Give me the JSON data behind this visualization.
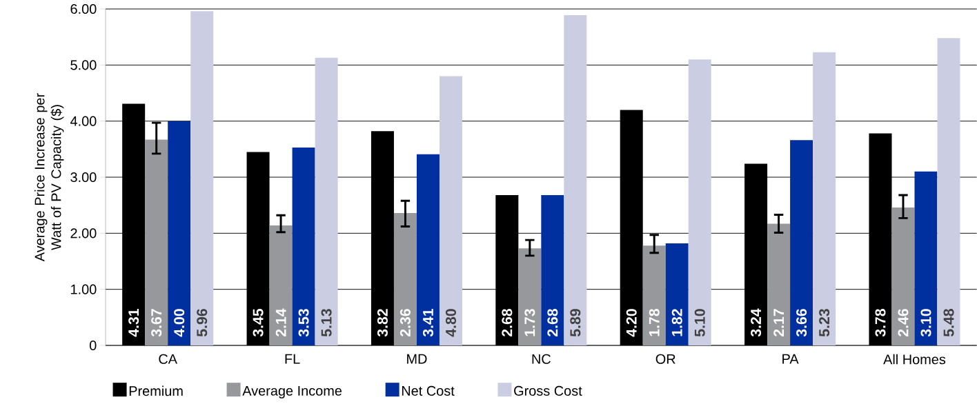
{
  "chart_data": {
    "type": "bar",
    "ylabel": "Average Price Increase per Watt of PV Capacity ($)",
    "categories": [
      "CA",
      "FL",
      "MD",
      "NC",
      "OR",
      "PA",
      "All Homes"
    ],
    "series": [
      {
        "name": "Premium",
        "color": "#000000",
        "values": [
          4.31,
          3.45,
          3.82,
          2.68,
          4.2,
          3.24,
          3.78
        ],
        "value_labels": [
          "4.31",
          "3.45",
          "3.82",
          "2.68",
          "4.20",
          "3.24",
          "3.78"
        ]
      },
      {
        "name": "Average Income",
        "color": "#97989c",
        "values": [
          3.67,
          2.14,
          2.36,
          1.73,
          1.78,
          2.17,
          2.46
        ],
        "value_labels": [
          "3.67",
          "2.14",
          "2.36",
          "1.73",
          "1.78",
          "2.17",
          "2.46"
        ],
        "errors": [
          [
            3.42,
            3.97
          ],
          [
            2.02,
            2.32
          ],
          [
            2.12,
            2.58
          ],
          [
            1.6,
            1.88
          ],
          [
            1.65,
            1.97
          ],
          [
            2.01,
            2.33
          ],
          [
            2.27,
            2.68
          ]
        ]
      },
      {
        "name": "Net Cost",
        "color": "#0030a0",
        "values": [
          4.0,
          3.53,
          3.41,
          2.68,
          1.82,
          3.66,
          3.1
        ],
        "value_labels": [
          "4.00",
          "3.53",
          "3.41",
          "2.68",
          "1.82",
          "3.66",
          "3.10"
        ]
      },
      {
        "name": "Gross Cost",
        "color": "#cbcee2",
        "values": [
          5.96,
          5.13,
          4.8,
          5.89,
          5.1,
          5.23,
          5.48
        ],
        "value_labels": [
          "5.96",
          "5.13",
          "4.80",
          "5.89",
          "5.10",
          "5.23",
          "5.48"
        ]
      }
    ],
    "ylim": [
      0,
      6
    ],
    "yticks": [
      {
        "value": 0,
        "label": "0"
      },
      {
        "value": 1,
        "label": "1.00"
      },
      {
        "value": 2,
        "label": "2.00"
      },
      {
        "value": 3,
        "label": "3.00"
      },
      {
        "value": 4,
        "label": "4.00"
      },
      {
        "value": 5,
        "label": "5.00"
      },
      {
        "value": 6,
        "label": "6.00"
      }
    ],
    "grid": "y",
    "legend": "bottom"
  }
}
